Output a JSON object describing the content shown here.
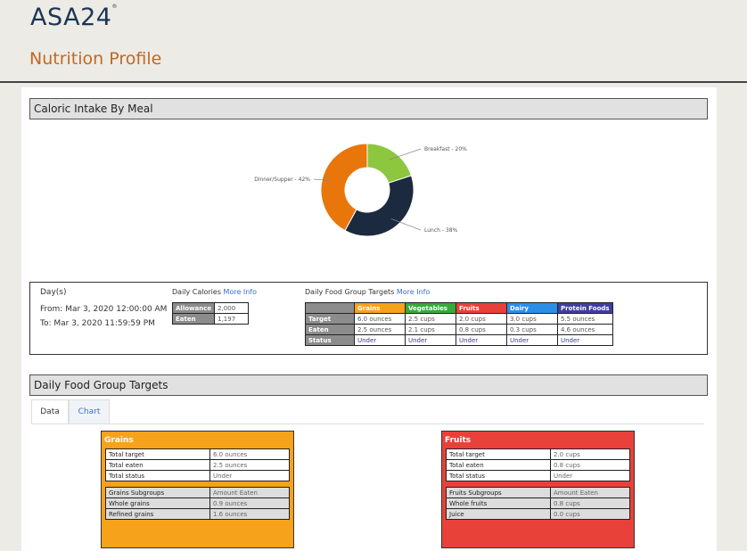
{
  "header": {
    "logo": "ASA24",
    "logo_mark": "®",
    "title": "Nutrition Profile"
  },
  "caloric_section": {
    "title": "Caloric Intake By Meal"
  },
  "meal_chart": {
    "type": "pie",
    "labels": [
      "Breakfast - 20%",
      "Lunch - 38%",
      "Dinner/Supper - 42%"
    ],
    "values": [
      20,
      38,
      42
    ],
    "colors": [
      "#8dc63f",
      "#1b2a3e",
      "#e8760a"
    ]
  },
  "summary": {
    "days_label": "Day(s)",
    "from": "From: Mar 3, 2020 12:00:00 AM",
    "to": "To: Mar 3, 2020 11:59:59 PM",
    "calories": {
      "title": "Daily Calories",
      "more_info": "More Info",
      "rows": [
        [
          "Allowance",
          "2,000"
        ],
        [
          "Eaten",
          "1,197"
        ]
      ]
    },
    "targets": {
      "title": "Daily Food Group Targets",
      "more_info": "More Info",
      "columns": [
        {
          "name": "Grains",
          "color": "#f7a21b"
        },
        {
          "name": "Vegetables",
          "color": "#3aa83a"
        },
        {
          "name": "Fruits",
          "color": "#e8413a"
        },
        {
          "name": "Dairy",
          "color": "#2b8fe8"
        },
        {
          "name": "Protein Foods",
          "color": "#3f3f9f"
        }
      ],
      "rows": [
        {
          "label": "Target",
          "cells": [
            "6.0 ounces",
            "2.5 cups",
            "2.0 cups",
            "3.0 cups",
            "5.5 ounces"
          ]
        },
        {
          "label": "Eaten",
          "cells": [
            "2.5 ounces",
            "2.1 cups",
            "0.8 cups",
            "0.3 cups",
            "4.6 ounces"
          ]
        },
        {
          "label": "Status",
          "cells": [
            "Under",
            "Under",
            "Under",
            "Under",
            "Under"
          ]
        }
      ]
    }
  },
  "groups_section": {
    "title": "Daily Food Group Targets",
    "tabs": [
      "Data",
      "Chart"
    ],
    "cards": [
      {
        "title": "Grains",
        "color": "#f7a21b",
        "rows": [
          [
            "Total target",
            "6.0 ounces"
          ],
          [
            "Total eaten",
            "2.5 ounces"
          ],
          [
            "Total status",
            "Under"
          ]
        ],
        "subgroup_header": [
          "Grains Subgroups",
          "Amount Eaten"
        ],
        "subgroups": [
          [
            "Whole grains",
            "0.9 ounces"
          ],
          [
            "Refined grains",
            "1.6 ounces"
          ]
        ]
      },
      {
        "title": "Fruits",
        "color": "#e8413a",
        "rows": [
          [
            "Total target",
            "2.0 cups"
          ],
          [
            "Total eaten",
            "0.8 cups"
          ],
          [
            "Total status",
            "Under"
          ]
        ],
        "subgroup_header": [
          "Fruits Subgroups",
          "Amount Eaten"
        ],
        "subgroups": [
          [
            "Whole fruits",
            "0.8 cups"
          ],
          [
            "Juice",
            "0.0 cups"
          ]
        ]
      }
    ]
  }
}
